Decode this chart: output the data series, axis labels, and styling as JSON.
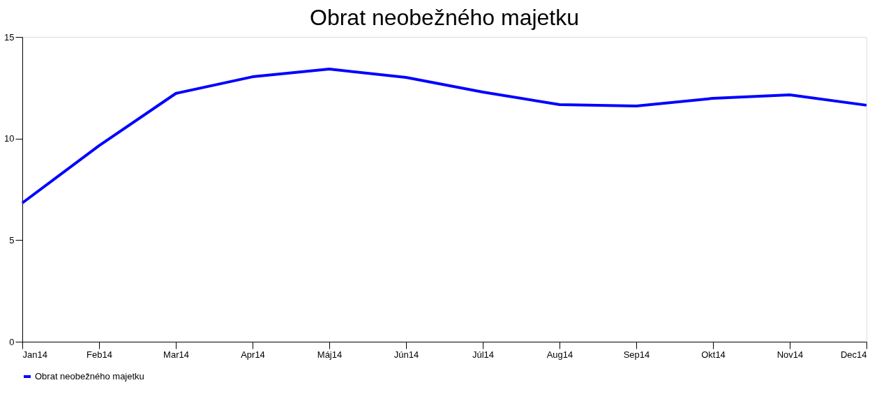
{
  "chart_data": {
    "type": "line",
    "title": "Obrat neobežného majetku",
    "categories": [
      "Jan14",
      "Feb14",
      "Mar14",
      "Apr14",
      "Máj14",
      "Jún14",
      "Júl14",
      "Aug14",
      "Sep14",
      "Okt14",
      "Nov14",
      "Dec14"
    ],
    "series": [
      {
        "name": "Obrat neobežného majetku",
        "color": "#0000ff",
        "values": [
          6.83,
          9.65,
          12.22,
          13.04,
          13.42,
          13.01,
          12.29,
          11.67,
          11.6,
          11.98,
          12.15,
          11.64
        ]
      }
    ],
    "ylim": [
      0,
      15
    ],
    "yticks": [
      0,
      5,
      10,
      15
    ],
    "grid": false,
    "legend": "bottom",
    "marker": "none",
    "line_style": "solid"
  }
}
